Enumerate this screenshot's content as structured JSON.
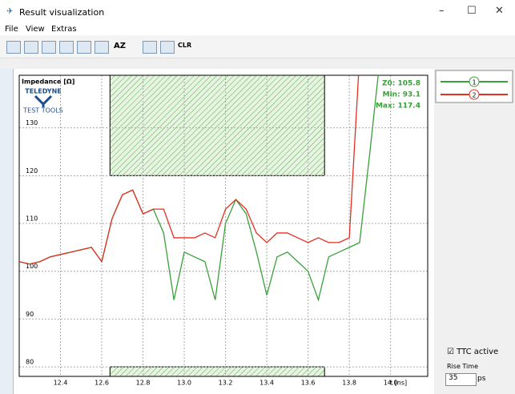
{
  "window": {
    "title": "Result visualization",
    "menu": [
      "File",
      "View",
      "Extras"
    ],
    "toolbar": [
      "AZ",
      "CLR"
    ]
  },
  "logo": [
    "TELEDYNE",
    "TEST TOOLS"
  ],
  "chart_data": {
    "type": "line",
    "ylabel": "Impedance [Ω]",
    "xlabel": "t [ns]",
    "annotations": [
      "Z0: 105.8",
      "Min: 93.1",
      "Max: 117.4"
    ],
    "x": [
      12.2,
      12.25,
      12.3,
      12.35,
      12.4,
      12.45,
      12.5,
      12.55,
      12.6,
      12.65,
      12.7,
      12.75,
      12.8,
      12.85,
      12.9,
      12.95,
      13.0,
      13.05,
      13.1,
      13.15,
      13.2,
      13.25,
      13.3,
      13.35,
      13.4,
      13.45,
      13.5,
      13.55,
      13.6,
      13.65,
      13.7,
      13.75,
      13.8,
      13.85,
      13.9,
      13.95
    ],
    "series": [
      {
        "name": "1",
        "color": "#3aa03a",
        "values": [
          102,
          101.5,
          102,
          103,
          103.5,
          104,
          104.5,
          105,
          102,
          111,
          116,
          117,
          112,
          113,
          108,
          94,
          104,
          103,
          102,
          94,
          110,
          115,
          112,
          104,
          95,
          103,
          104,
          102,
          100,
          94,
          103,
          104,
          105,
          106,
          125,
          145
        ]
      },
      {
        "name": "2",
        "color": "#e03020",
        "values": [
          102,
          101.5,
          102,
          103,
          103.5,
          104,
          104.5,
          105,
          102,
          111,
          116,
          117,
          112,
          113,
          113,
          107,
          107,
          107,
          108,
          107,
          113,
          115,
          113,
          108,
          106,
          108,
          108,
          107,
          106,
          107,
          106,
          106,
          107,
          145,
          null,
          null
        ]
      }
    ],
    "masks": [
      {
        "x": [
          12.64,
          13.68
        ],
        "y": [
          120,
          141
        ]
      },
      {
        "x": [
          12.64,
          13.68
        ],
        "y": [
          78,
          80
        ]
      }
    ],
    "xlim": [
      12.2,
      14.18
    ],
    "ylim": [
      78,
      141
    ],
    "xticks": [
      12.4,
      12.6,
      12.8,
      {
        "value": 13,
        "label": "13.0"
      },
      13.2,
      13.4,
      13.6,
      13.8,
      {
        "value": 14,
        "label": "14.0"
      }
    ],
    "yticks": [
      80,
      90,
      100,
      110,
      120,
      130
    ],
    "grid": true
  },
  "side": {
    "checkbox": "TTC active",
    "rise_label": "Rise Time",
    "rise_value": "35",
    "rise_unit": "ps"
  }
}
